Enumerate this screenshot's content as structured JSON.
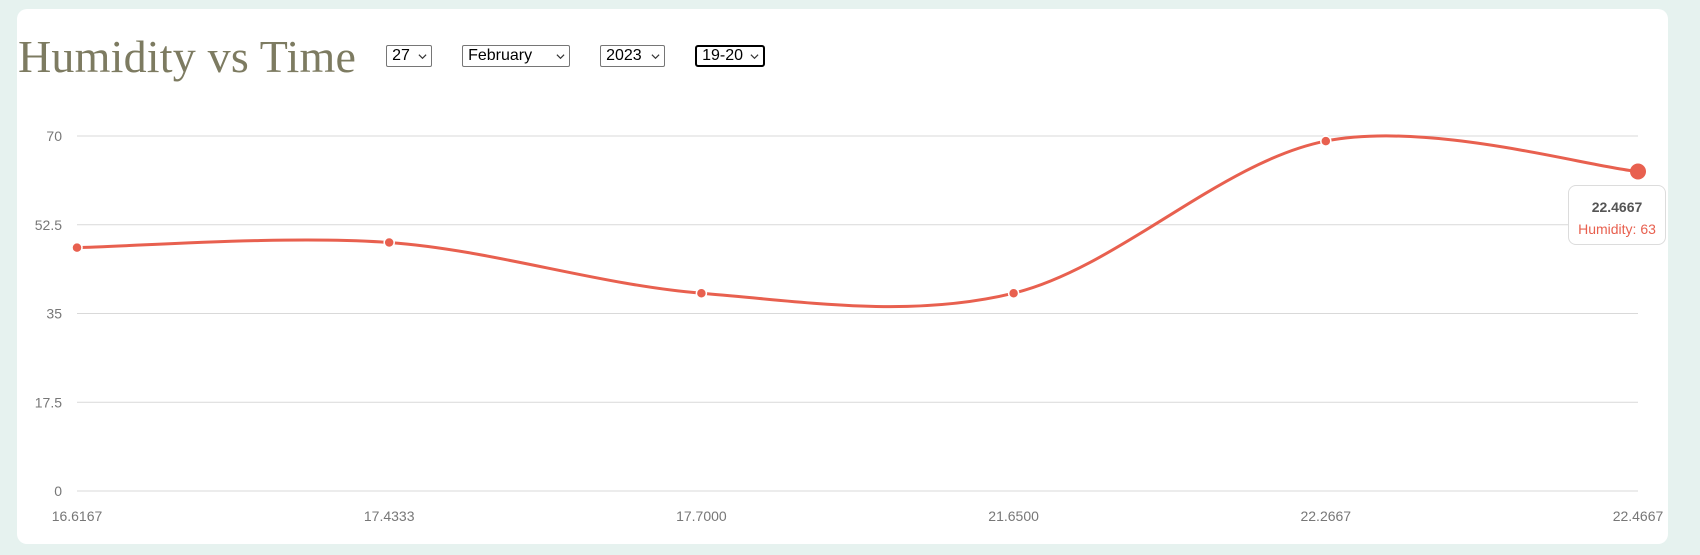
{
  "header": {
    "title": "Humidity vs Time",
    "day": "27",
    "month": "February",
    "year": "2023",
    "hour_range": "19-20"
  },
  "tooltip": {
    "label": "22.4667",
    "series_text": "Humidity: 63"
  },
  "colors": {
    "line": "#e8604f",
    "title": "#7d7b61",
    "background": "#e6f2ef"
  },
  "chart_data": {
    "type": "line",
    "categories": [
      "16.6167",
      "17.4333",
      "17.7000",
      "21.6500",
      "22.2667",
      "22.4667"
    ],
    "series": [
      {
        "name": "Humidity",
        "values": [
          48,
          49,
          39,
          39,
          69,
          63
        ]
      }
    ],
    "y_ticks": [
      "0",
      "17.5",
      "35",
      "52.5",
      "70"
    ],
    "ylim": [
      0,
      70
    ],
    "grid": true,
    "smooth": true
  }
}
